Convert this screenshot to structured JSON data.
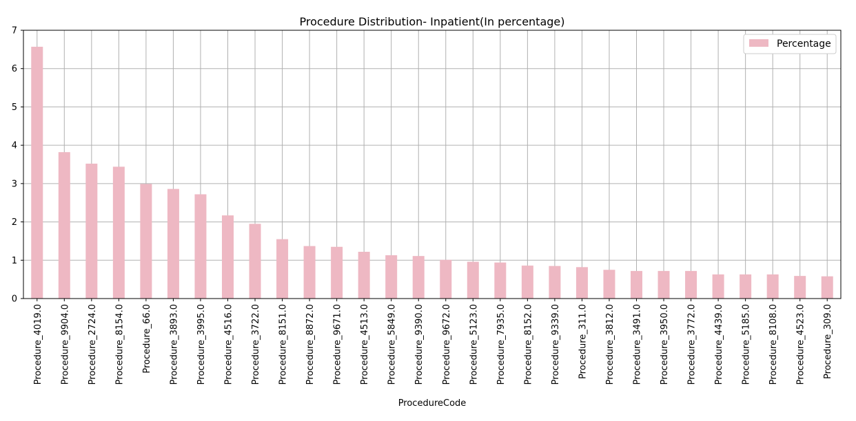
{
  "chart_data": {
    "type": "bar",
    "title": "Procedure Distribution- Inpatient(In percentage)",
    "xlabel": "ProcedureCode",
    "ylabel": "",
    "ylim": [
      0,
      7
    ],
    "yticks": [
      0,
      1,
      2,
      3,
      4,
      5,
      6,
      7
    ],
    "grid": true,
    "legend_position": "top-right",
    "categories": [
      "Procedure_4019.0",
      "Procedure_9904.0",
      "Procedure_2724.0",
      "Procedure_8154.0",
      "Procedure_66.0",
      "Procedure_3893.0",
      "Procedure_3995.0",
      "Procedure_4516.0",
      "Procedure_3722.0",
      "Procedure_8151.0",
      "Procedure_8872.0",
      "Procedure_9671.0",
      "Procedure_4513.0",
      "Procedure_5849.0",
      "Procedure_9390.0",
      "Procedure_9672.0",
      "Procedure_5123.0",
      "Procedure_7935.0",
      "Procedure_8152.0",
      "Procedure_9339.0",
      "Procedure_311.0",
      "Procedure_3812.0",
      "Procedure_3491.0",
      "Procedure_3950.0",
      "Procedure_3772.0",
      "Procedure_4439.0",
      "Procedure_5185.0",
      "Procedure_8108.0",
      "Procedure_4523.0",
      "Procedure_309.0"
    ],
    "series": [
      {
        "name": "Percentage",
        "color": "#eeb8c3",
        "values": [
          6.57,
          3.82,
          3.52,
          3.44,
          2.99,
          2.86,
          2.72,
          2.17,
          1.95,
          1.55,
          1.37,
          1.35,
          1.22,
          1.13,
          1.11,
          1.01,
          0.96,
          0.94,
          0.86,
          0.85,
          0.82,
          0.75,
          0.72,
          0.72,
          0.72,
          0.63,
          0.63,
          0.63,
          0.59,
          0.58
        ]
      }
    ]
  }
}
